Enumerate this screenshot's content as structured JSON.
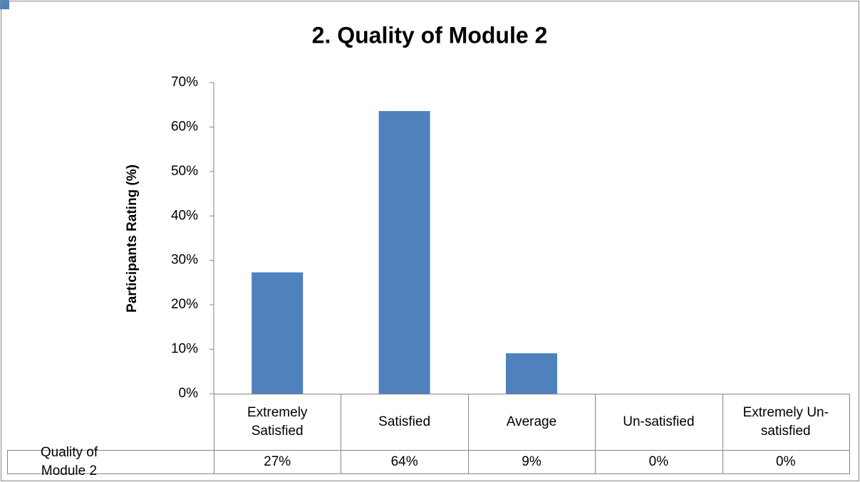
{
  "chart_data": {
    "type": "bar",
    "title": "2. Quality of Module 2",
    "y_label": "Participants Rating (%)",
    "categories": [
      "Extremely Satisfied",
      "Satisfied",
      "Average",
      "Un-satisfied",
      "Extremely Un-satisfied"
    ],
    "series": [
      {
        "name": "Quality of Module 2",
        "color": "#4f81bd",
        "values": [
          27.3,
          63.6,
          9.1,
          0,
          0
        ],
        "value_labels": [
          "27%",
          "64%",
          "9%",
          "0%",
          "0%"
        ]
      }
    ],
    "ylim": [
      0,
      70
    ],
    "yticks": [
      {
        "value": 0,
        "label": "0%"
      },
      {
        "value": 10,
        "label": "10%"
      },
      {
        "value": 20,
        "label": "20%"
      },
      {
        "value": 30,
        "label": "30%"
      },
      {
        "value": 40,
        "label": "40%"
      },
      {
        "value": 50,
        "label": "50%"
      },
      {
        "value": 60,
        "label": "60%"
      },
      {
        "value": 70,
        "label": "70%"
      }
    ],
    "grid": false
  }
}
